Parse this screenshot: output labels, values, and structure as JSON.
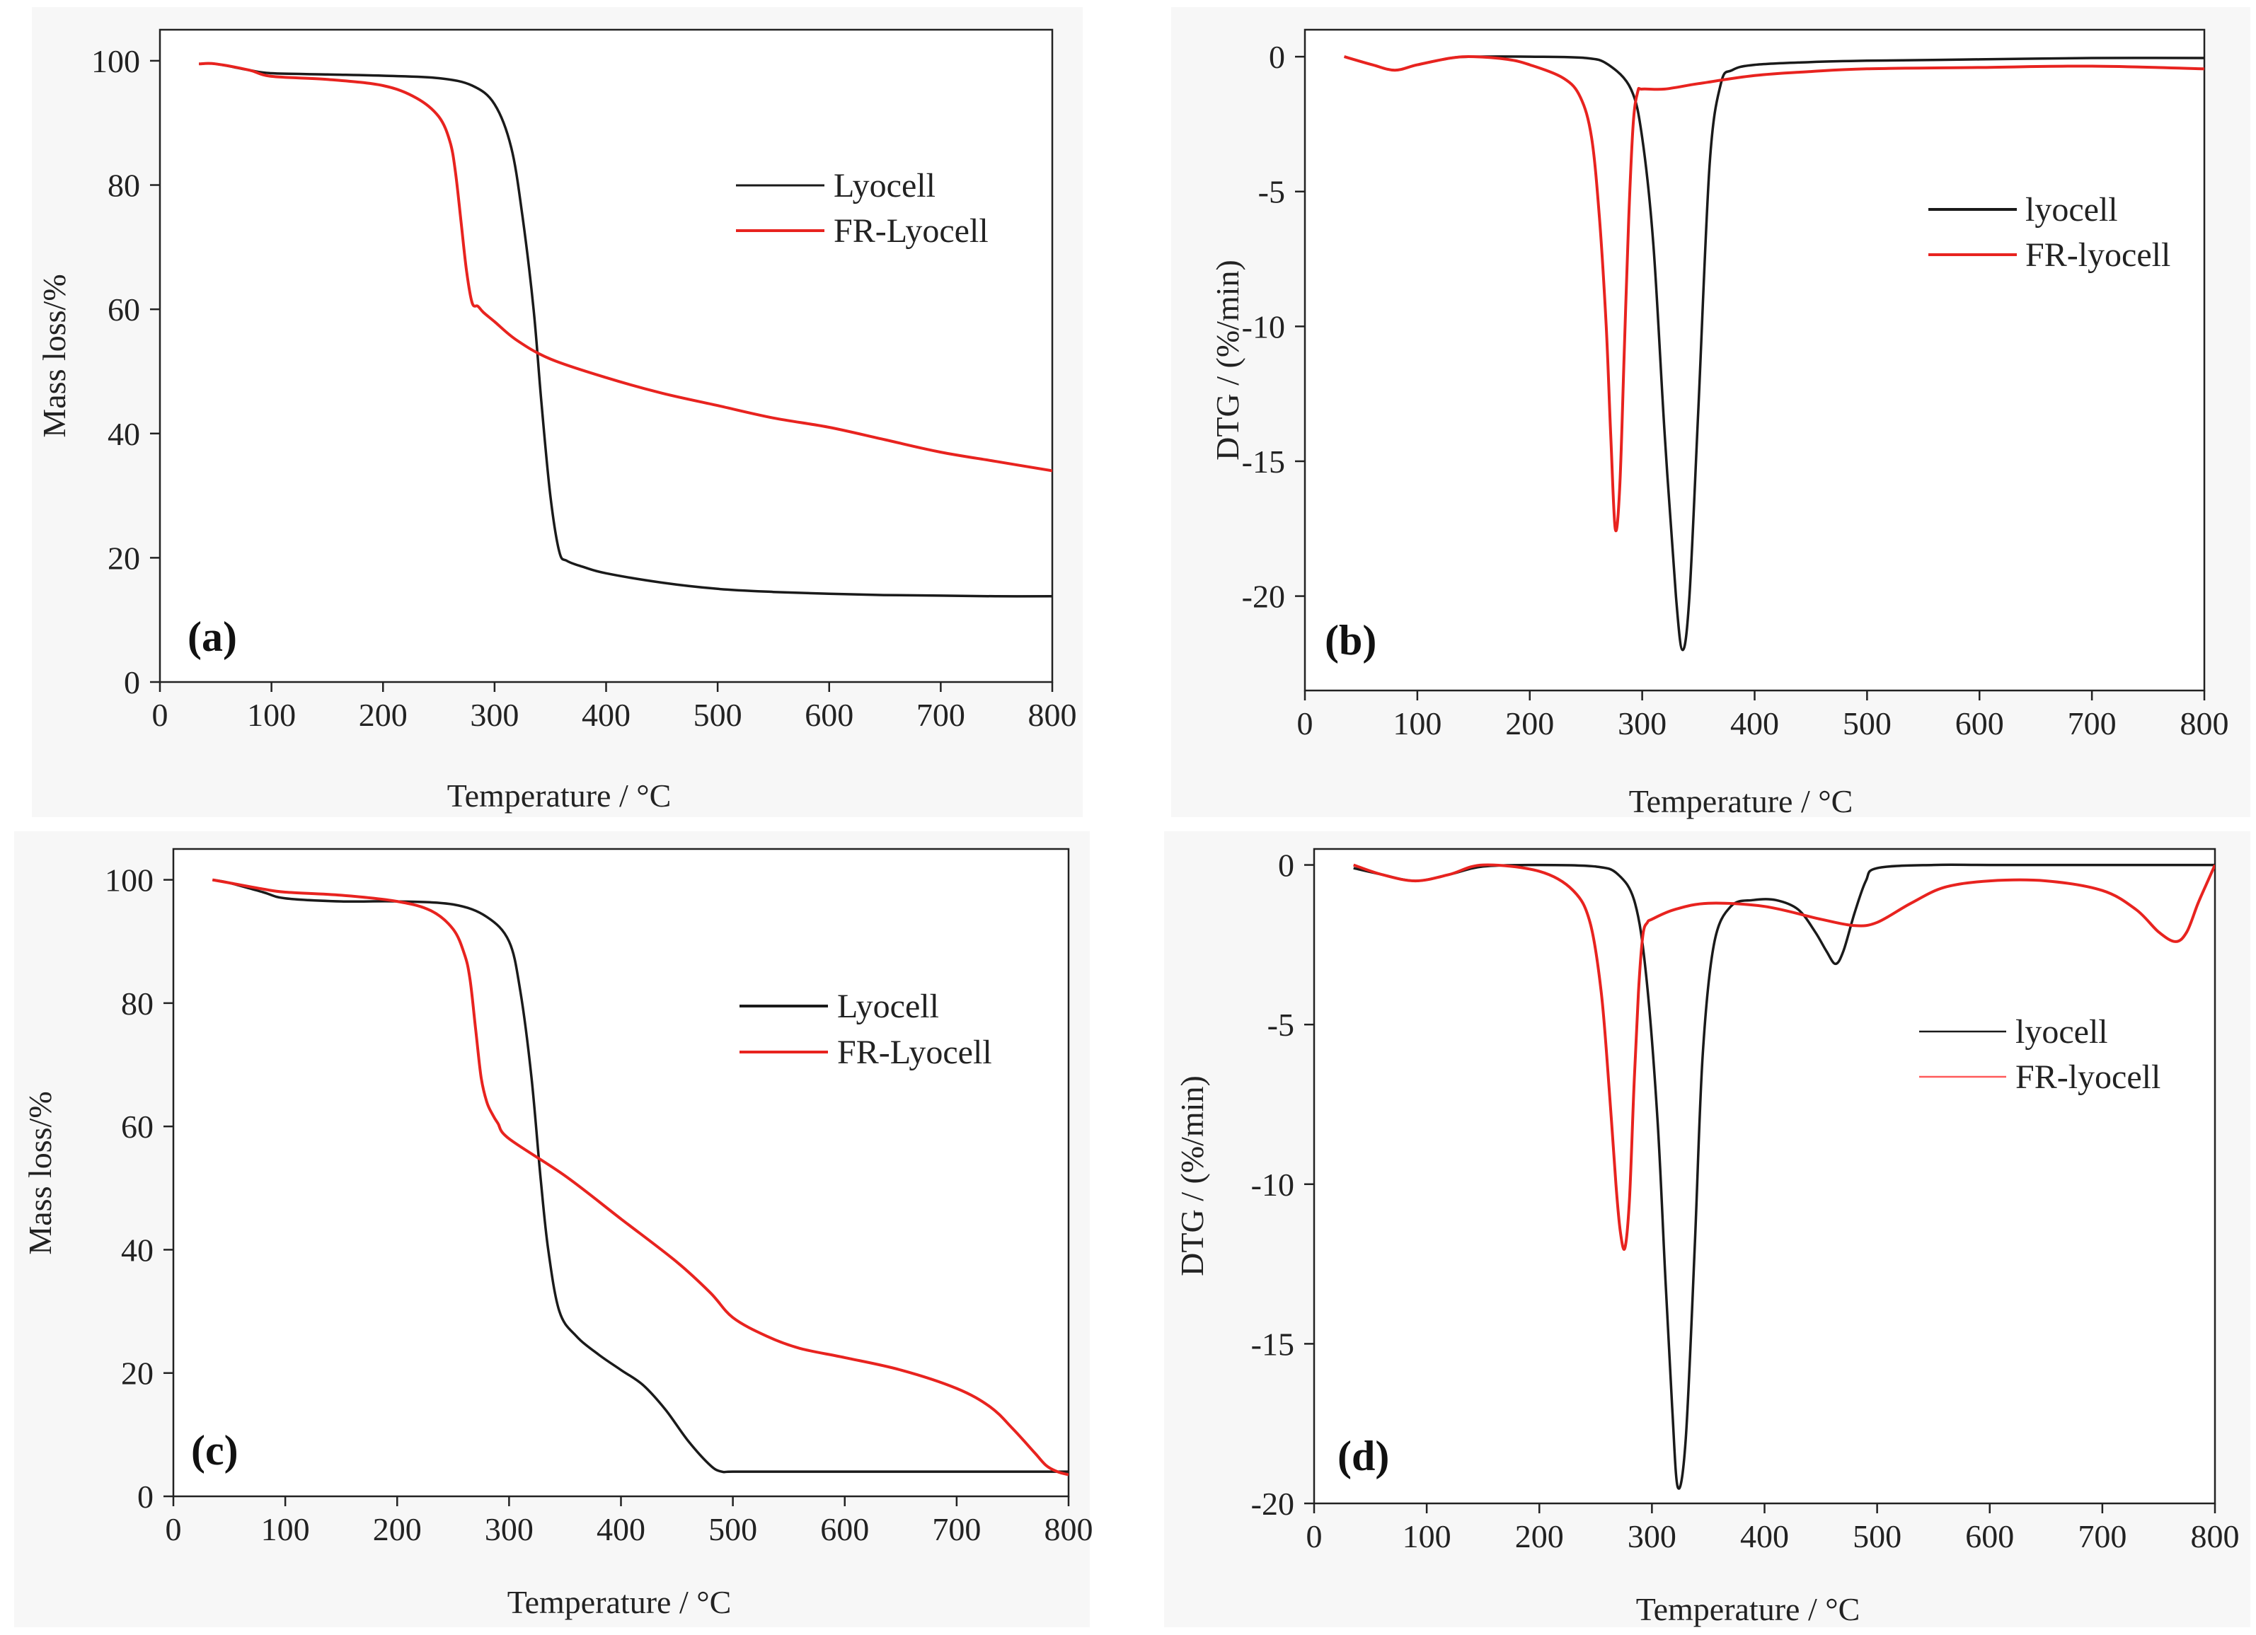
{
  "figure": {
    "colors": {
      "lyocell": "#1a1a1a",
      "fr_lyocell": "#e8231f",
      "axis": "#222222"
    }
  },
  "chart_data": [
    {
      "id": "a",
      "type": "line",
      "panel_label": "(a)",
      "xlabel": "Temperature / °C",
      "ylabel": "Mass loss/%",
      "xlim": [
        0,
        800
      ],
      "ylim": [
        0,
        105
      ],
      "xticks": [
        0,
        100,
        200,
        300,
        400,
        500,
        600,
        700,
        800
      ],
      "yticks": [
        0,
        20,
        40,
        60,
        80,
        100
      ],
      "xtick_labels": [
        "0",
        "100",
        "200",
        "300",
        "400",
        "500",
        "600",
        "700",
        "800"
      ],
      "ytick_labels": [
        "0",
        "20",
        "40",
        "60",
        "80",
        "100"
      ],
      "legend": [
        "Lyocell",
        "FR-Lyocell"
      ],
      "series": [
        {
          "name": "Lyocell",
          "color": "#1a1a1a",
          "x": [
            35,
            50,
            80,
            100,
            150,
            200,
            250,
            280,
            300,
            315,
            325,
            335,
            342,
            350,
            358,
            365,
            380,
            400,
            450,
            500,
            550,
            600,
            650,
            700,
            750,
            800
          ],
          "y": [
            99.5,
            99.5,
            98.5,
            98,
            97.8,
            97.6,
            97.2,
            96,
            93,
            86,
            75,
            60,
            45,
            30,
            21,
            19.5,
            18.5,
            17.5,
            16,
            15,
            14.5,
            14.2,
            14,
            13.9,
            13.8,
            13.8
          ]
        },
        {
          "name": "FR-Lyocell",
          "color": "#e8231f",
          "x": [
            35,
            50,
            80,
            100,
            150,
            200,
            230,
            250,
            260,
            265,
            270,
            275,
            280,
            285,
            290,
            300,
            320,
            350,
            400,
            450,
            500,
            550,
            600,
            650,
            700,
            750,
            800
          ],
          "y": [
            99.5,
            99.5,
            98.5,
            97.5,
            97,
            96,
            94,
            91,
            87,
            82,
            74,
            66,
            61,
            60.5,
            59.5,
            58,
            55,
            52,
            49,
            46.5,
            44.5,
            42.5,
            41,
            39,
            37,
            35.5,
            34
          ]
        }
      ]
    },
    {
      "id": "b",
      "type": "line",
      "panel_label": "(b)",
      "xlabel": "Temperature / °C",
      "ylabel": "DTG / (%/min)",
      "xlim": [
        0,
        800
      ],
      "ylim": [
        -23.5,
        1
      ],
      "xticks": [
        0,
        100,
        200,
        300,
        400,
        500,
        600,
        700,
        800
      ],
      "yticks": [
        0,
        -5,
        -10,
        -15,
        -20
      ],
      "xtick_labels": [
        "0",
        "100",
        "200",
        "300",
        "400",
        "500",
        "600",
        "700",
        "800"
      ],
      "ytick_labels": [
        "0",
        "-5",
        "-10",
        "-15",
        "-20"
      ],
      "legend": [
        "lyocell",
        "FR-lyocell"
      ],
      "series": [
        {
          "name": "lyocell",
          "color": "#1a1a1a",
          "x": [
            35,
            60,
            80,
            100,
            130,
            150,
            200,
            250,
            270,
            290,
            300,
            310,
            320,
            330,
            336,
            342,
            350,
            360,
            370,
            380,
            400,
            450,
            500,
            600,
            700,
            800
          ],
          "y": [
            0,
            -0.3,
            -0.5,
            -0.3,
            -0.05,
            0,
            0,
            -0.05,
            -0.3,
            -1.2,
            -3,
            -7,
            -14,
            -20,
            -22,
            -20,
            -13,
            -4,
            -1,
            -0.5,
            -0.3,
            -0.2,
            -0.15,
            -0.1,
            -0.05,
            -0.05
          ]
        },
        {
          "name": "FR-lyocell",
          "color": "#e8231f",
          "x": [
            35,
            60,
            80,
            100,
            130,
            150,
            180,
            200,
            230,
            245,
            255,
            262,
            268,
            272,
            276,
            280,
            284,
            288,
            292,
            296,
            300,
            320,
            350,
            400,
            450,
            500,
            600,
            700,
            800
          ],
          "y": [
            0,
            -0.3,
            -0.5,
            -0.3,
            -0.05,
            0,
            -0.1,
            -0.3,
            -0.8,
            -1.5,
            -3,
            -6,
            -10,
            -14,
            -17.5,
            -16,
            -11,
            -6,
            -2.5,
            -1.3,
            -1.2,
            -1.2,
            -1.0,
            -0.7,
            -0.55,
            -0.45,
            -0.4,
            -0.35,
            -0.45
          ]
        }
      ]
    },
    {
      "id": "c",
      "type": "line",
      "panel_label": "(c)",
      "xlabel": "Temperature / °C",
      "ylabel": "Mass loss/%",
      "xlim": [
        0,
        800
      ],
      "ylim": [
        0,
        105
      ],
      "xticks": [
        0,
        100,
        200,
        300,
        400,
        500,
        600,
        700,
        800
      ],
      "yticks": [
        0,
        20,
        40,
        60,
        80,
        100
      ],
      "xtick_labels": [
        "0",
        "100",
        "200",
        "300",
        "400",
        "500",
        "600",
        "700",
        "800"
      ],
      "ytick_labels": [
        "0",
        "20",
        "40",
        "60",
        "80",
        "100"
      ],
      "legend": [
        "Lyocell",
        "FR-Lyocell"
      ],
      "series": [
        {
          "name": "Lyocell",
          "color": "#1a1a1a",
          "x": [
            35,
            50,
            80,
            100,
            150,
            200,
            250,
            280,
            300,
            310,
            320,
            328,
            335,
            345,
            360,
            380,
            400,
            420,
            440,
            460,
            480,
            490,
            500,
            550,
            600,
            700,
            800
          ],
          "y": [
            100,
            99.5,
            98,
            97,
            96.5,
            96.5,
            96,
            94,
            90,
            82,
            68,
            52,
            40,
            30,
            26,
            23,
            20.5,
            18,
            14,
            9,
            5,
            4,
            4,
            4,
            4,
            4,
            4
          ]
        },
        {
          "name": "FR-Lyocell",
          "color": "#e8231f",
          "x": [
            35,
            50,
            80,
            100,
            150,
            200,
            230,
            250,
            260,
            265,
            270,
            275,
            280,
            285,
            290,
            300,
            350,
            400,
            450,
            480,
            500,
            530,
            560,
            600,
            650,
            700,
            730,
            750,
            770,
            780,
            790,
            800
          ],
          "y": [
            100,
            99.5,
            98.5,
            98,
            97.5,
            96.5,
            95,
            92,
            88,
            84,
            76,
            68,
            64,
            62,
            60.5,
            58,
            52,
            45,
            38,
            33,
            29,
            26,
            24,
            22.5,
            20.5,
            17.5,
            14.5,
            11,
            7,
            5,
            4,
            3.5
          ]
        }
      ]
    },
    {
      "id": "d",
      "type": "line",
      "panel_label": "(d)",
      "xlabel": "Temperature / °C",
      "ylabel": "DTG / (%/min)",
      "xlim": [
        0,
        800
      ],
      "ylim": [
        -20,
        0.5
      ],
      "xticks": [
        0,
        100,
        200,
        300,
        400,
        500,
        600,
        700,
        800
      ],
      "yticks": [
        0,
        -5,
        -10,
        -15,
        -20
      ],
      "xtick_labels": [
        "0",
        "100",
        "200",
        "300",
        "400",
        "500",
        "600",
        "700",
        "800"
      ],
      "ytick_labels": [
        "0",
        "-5",
        "-10",
        "-15",
        "-20"
      ],
      "legend": [
        "lyocell",
        "FR-lyocell"
      ],
      "series": [
        {
          "name": "lyocell",
          "color": "#1a1a1a",
          "x": [
            35,
            60,
            90,
            120,
            150,
            200,
            250,
            270,
            285,
            295,
            305,
            312,
            318,
            323,
            330,
            338,
            345,
            355,
            370,
            390,
            410,
            430,
            445,
            455,
            463,
            470,
            480,
            490,
            500,
            550,
            600,
            700,
            800
          ],
          "y": [
            -0.1,
            -0.3,
            -0.5,
            -0.3,
            -0.05,
            0,
            -0.05,
            -0.3,
            -1.2,
            -3.5,
            -8,
            -13,
            -17,
            -19.5,
            -18,
            -12,
            -6,
            -2.5,
            -1.3,
            -1.1,
            -1.1,
            -1.4,
            -2.1,
            -2.7,
            -3.1,
            -2.7,
            -1.5,
            -0.5,
            -0.1,
            0,
            0,
            0,
            0
          ]
        },
        {
          "name": "FR-lyocell",
          "color": "#e8231f",
          "x": [
            35,
            60,
            90,
            120,
            150,
            200,
            230,
            245,
            255,
            262,
            268,
            272,
            276,
            280,
            284,
            288,
            292,
            296,
            300,
            320,
            350,
            400,
            450,
            480,
            500,
            530,
            560,
            600,
            650,
            700,
            730,
            750,
            765,
            775,
            785,
            795,
            800
          ],
          "y": [
            0,
            -0.3,
            -0.5,
            -0.3,
            0,
            -0.2,
            -0.8,
            -1.8,
            -4,
            -7,
            -10,
            -11.5,
            -12,
            -10.5,
            -7,
            -4,
            -2.2,
            -1.8,
            -1.7,
            -1.4,
            -1.2,
            -1.3,
            -1.7,
            -1.9,
            -1.8,
            -1.2,
            -0.7,
            -0.5,
            -0.5,
            -0.8,
            -1.4,
            -2.1,
            -2.4,
            -2.1,
            -1.2,
            -0.4,
            0
          ]
        }
      ]
    }
  ]
}
